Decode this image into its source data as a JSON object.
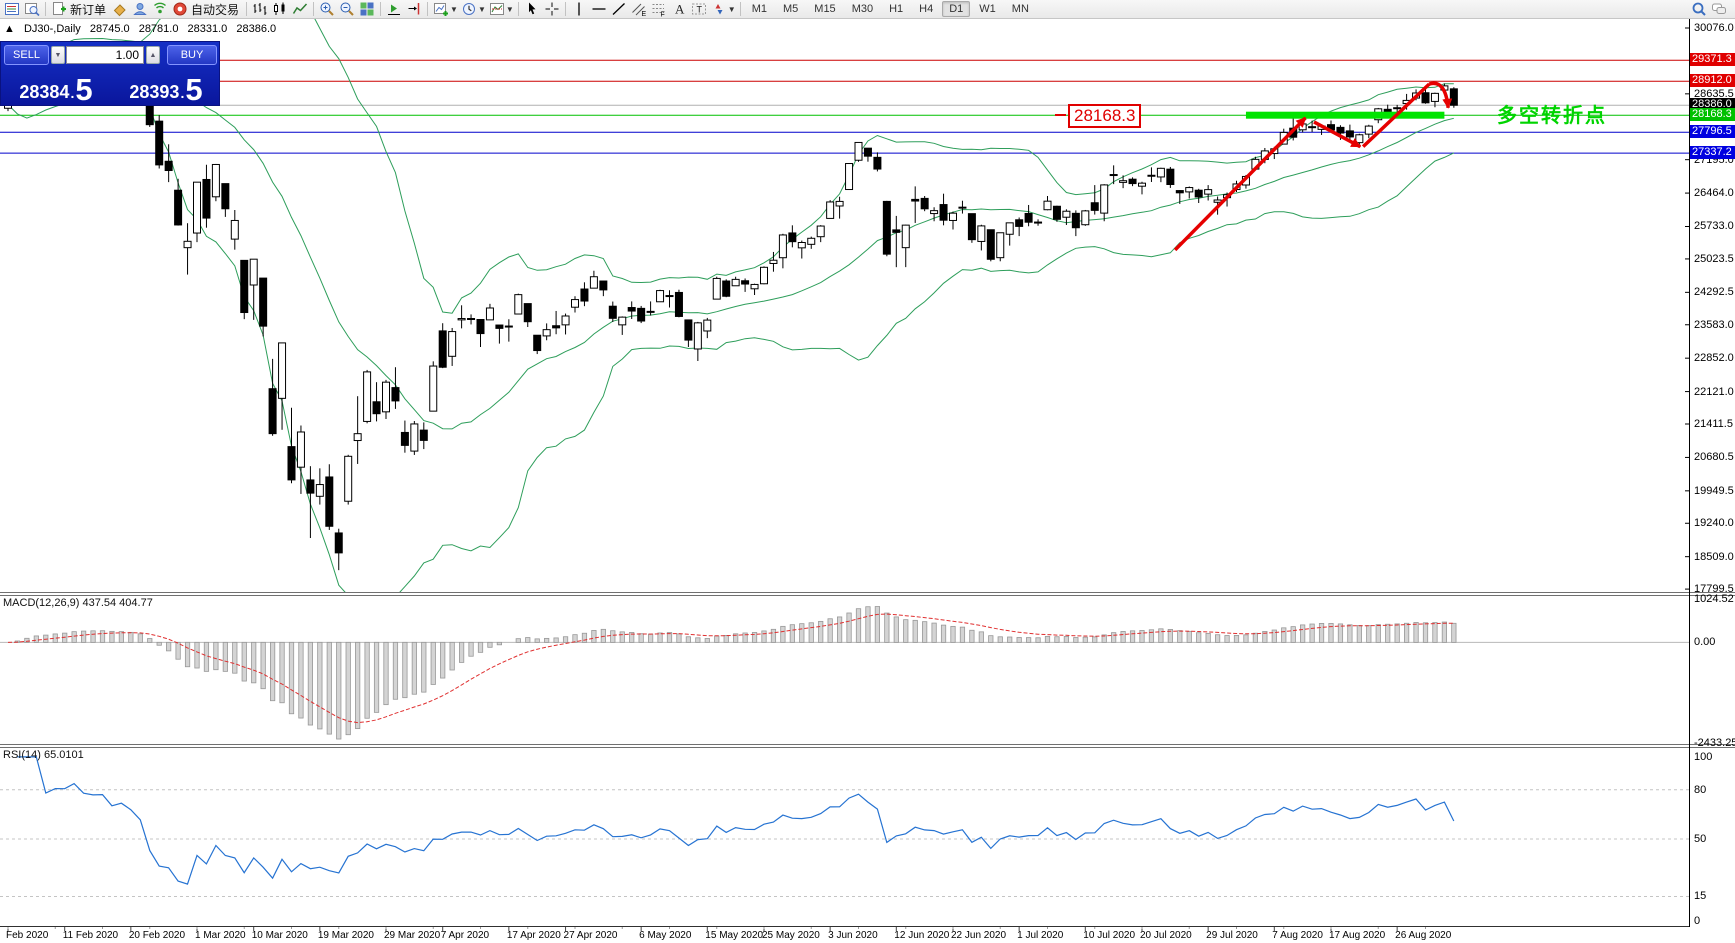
{
  "toolbar": {
    "groups": [
      [
        "market-watch",
        "data-window"
      ],
      [
        "new-order",
        "styler",
        "community",
        "signals",
        "auto-trading"
      ],
      [
        "bar-chart",
        "candlesticks",
        "line-chart"
      ],
      [
        "zoom-in",
        "zoom-out",
        "tile-windows"
      ],
      [
        "auto-scroll",
        "chart-shift"
      ],
      [
        "new-chart",
        "profiles",
        "templates"
      ],
      [
        "cursor",
        "crosshair"
      ],
      [
        "vertical-line",
        "horizontal-line",
        "trendline",
        "equidistant-channel",
        "fibonacci",
        "text",
        "text-label",
        "arrows"
      ]
    ],
    "labels": {
      "new-order": "新订单",
      "auto-trading": "自动交易"
    },
    "dropdown_after": [
      "new-chart",
      "profiles",
      "templates",
      "arrows"
    ],
    "timeframes": [
      "M1",
      "M5",
      "M15",
      "M30",
      "H1",
      "H4",
      "D1",
      "W1",
      "MN"
    ],
    "active_timeframe": "D1",
    "right_icons": [
      "search",
      "chat"
    ]
  },
  "chart_header": {
    "collapse_icon": "▲",
    "symbol_period": "DJ30-,Daily",
    "open": "28745.0",
    "high": "28781.0",
    "low": "28331.0",
    "close": "28386.0"
  },
  "trade_panel": {
    "sell_label": "SELL",
    "buy_label": "BUY",
    "volume": "1.00",
    "spin_down": "▼",
    "spin_up": "▲",
    "sell_price_main": "28384",
    "sell_price_dot": ".",
    "sell_price_pip": "5",
    "buy_price_main": "28393",
    "buy_price_dot": ".",
    "buy_price_pip": "5"
  },
  "annotations": {
    "level_label": "28168.3",
    "turning_point_label": "多空转折点"
  },
  "indicator_labels": {
    "macd": "MACD(12,26,9) 437.54 404.77",
    "rsi": "RSI(14) 65.0101"
  },
  "price_axis": {
    "ticks": [
      30076.0,
      28635.5,
      27195.0,
      26464.0,
      25733.0,
      25023.5,
      24292.5,
      23583.0,
      22852.0,
      22121.0,
      21411.5,
      20680.5,
      19949.5,
      19240.0,
      18509.0,
      17799.5
    ],
    "badges": [
      {
        "text": "29371.3",
        "value": 29371.3,
        "color": "#e00000"
      },
      {
        "text": "28912.0",
        "value": 28912.0,
        "color": "#e00000"
      },
      {
        "text": "28386.0",
        "value": 28386.0,
        "color": "#000000"
      },
      {
        "text": "28168.3",
        "value": 28168.3,
        "color": "#00c000"
      },
      {
        "text": "27796.5",
        "value": 27796.5,
        "color": "#0000e0"
      },
      {
        "text": "27337.2",
        "value": 27337.2,
        "color": "#0000e0"
      }
    ]
  },
  "macd_axis": [
    {
      "text": "1024.52",
      "value": 1024.52
    },
    {
      "text": "0.00",
      "value": 0
    },
    {
      "text": "-2433.25",
      "value": -2433.25
    }
  ],
  "rsi_axis": [
    {
      "text": "100",
      "value": 100
    },
    {
      "text": "80",
      "value": 80
    },
    {
      "text": "50",
      "value": 50
    },
    {
      "text": "15",
      "value": 15
    },
    {
      "text": "0",
      "value": 0
    }
  ],
  "chart_data": {
    "type": "candlestick",
    "symbol": "DJ30-",
    "period": "Daily",
    "price_ylim": [
      17736,
      30273
    ],
    "macd_ylim": [
      -2408,
      1122
    ],
    "rsi_ylim": [
      -3,
      106
    ],
    "indicators": {
      "bollinger": {
        "period": 20,
        "deviation": 2,
        "color": "#2e9e5b"
      },
      "macd": {
        "fast": 12,
        "slow": 26,
        "signal": 9,
        "current": 437.54,
        "current_signal": 404.77
      },
      "rsi": {
        "period": 14,
        "current": 65.0101,
        "levels": [
          80,
          50,
          15
        ]
      }
    },
    "candles": [
      [
        28320,
        28631,
        28256,
        28400
      ],
      [
        28697,
        28905,
        28560,
        28808
      ],
      [
        29049,
        29309,
        28950,
        29291
      ],
      [
        29389,
        29409,
        29247,
        29380
      ],
      [
        29287,
        29409,
        29056,
        29103
      ],
      [
        29075,
        29278,
        28995,
        29277
      ],
      [
        29384,
        29415,
        29211,
        29276
      ],
      [
        29406,
        29568,
        29406,
        29551
      ],
      [
        29407,
        29535,
        29348,
        29423
      ],
      [
        29440,
        29481,
        29331,
        29398
      ],
      [
        29410,
        29460,
        29350,
        29415
      ],
      [
        29282,
        29330,
        29117,
        29232
      ],
      [
        29312,
        29409,
        29250,
        29348
      ],
      [
        29259,
        29368,
        28959,
        29220
      ],
      [
        29096,
        29139,
        28892,
        28992
      ],
      [
        28403,
        28403,
        27912,
        27961
      ],
      [
        28038,
        28170,
        27002,
        27081
      ],
      [
        27160,
        27532,
        26704,
        26958
      ],
      [
        26527,
        26777,
        25753,
        25767
      ],
      [
        25270,
        25805,
        24681,
        25409
      ],
      [
        25590,
        26706,
        25391,
        26703
      ],
      [
        26762,
        27084,
        25707,
        25917
      ],
      [
        26383,
        27102,
        26286,
        27090
      ],
      [
        26671,
        26671,
        25943,
        26121
      ],
      [
        25457,
        26094,
        25226,
        25865
      ],
      [
        24992,
        24992,
        23706,
        23851
      ],
      [
        24453,
        25020,
        23690,
        25018
      ],
      [
        24604,
        24604,
        23328,
        23553
      ],
      [
        22184,
        22837,
        21154,
        21201
      ],
      [
        21973,
        23189,
        21285,
        23186
      ],
      [
        20917,
        21768,
        20116,
        20189
      ],
      [
        20467,
        21379,
        19882,
        21237
      ],
      [
        20188,
        20489,
        18917,
        19899
      ],
      [
        19830,
        20442,
        19649,
        20087
      ],
      [
        20253,
        20531,
        19094,
        19174
      ],
      [
        19028,
        19121,
        18214,
        18592
      ],
      [
        19722,
        20738,
        19649,
        20705
      ],
      [
        21050,
        22020,
        20538,
        21200
      ],
      [
        21468,
        22595,
        21427,
        22552
      ],
      [
        21898,
        22327,
        21469,
        21637
      ],
      [
        21678,
        22378,
        21522,
        22327
      ],
      [
        22208,
        22654,
        21742,
        21917
      ],
      [
        21227,
        21487,
        20784,
        20944
      ],
      [
        20819,
        21477,
        20735,
        21413
      ],
      [
        21278,
        21447,
        20863,
        21053
      ],
      [
        21693,
        22783,
        21693,
        22680
      ],
      [
        23449,
        23617,
        22634,
        22654
      ],
      [
        22893,
        23513,
        22682,
        23434
      ],
      [
        23690,
        24009,
        23504,
        23719
      ],
      [
        23720,
        23810,
        23590,
        23720
      ],
      [
        23698,
        23698,
        23096,
        23390
      ],
      [
        23690,
        24041,
        23690,
        23950
      ],
      [
        23577,
        23577,
        23171,
        23504
      ],
      [
        23555,
        23704,
        23214,
        23538
      ],
      [
        23818,
        24264,
        23818,
        24242
      ],
      [
        24046,
        24046,
        23534,
        23650
      ],
      [
        23354,
        23354,
        22942,
        23019
      ],
      [
        23339,
        23613,
        23244,
        23476
      ],
      [
        23562,
        23885,
        23376,
        23515
      ],
      [
        23581,
        23828,
        23371,
        23775
      ],
      [
        23967,
        24206,
        23851,
        24134
      ],
      [
        24365,
        24512,
        23990,
        24102
      ],
      [
        24384,
        24765,
        24384,
        24634
      ],
      [
        24540,
        24541,
        24209,
        24346
      ],
      [
        23989,
        24091,
        23645,
        23724
      ],
      [
        23581,
        23766,
        23361,
        23750
      ],
      [
        23960,
        24094,
        23710,
        23883
      ],
      [
        23942,
        23995,
        23620,
        23665
      ],
      [
        23854,
        24094,
        23786,
        23876
      ],
      [
        24086,
        24349,
        24086,
        24331
      ],
      [
        24222,
        24338,
        23960,
        24222
      ],
      [
        24290,
        24350,
        23746,
        23765
      ],
      [
        23689,
        23690,
        23097,
        23248
      ],
      [
        23053,
        23646,
        22790,
        23625
      ],
      [
        23447,
        23733,
        23290,
        23685
      ],
      [
        24144,
        24635,
        24144,
        24597
      ],
      [
        24540,
        24577,
        24186,
        24207
      ],
      [
        24436,
        24634,
        24436,
        24576
      ],
      [
        24546,
        24596,
        24302,
        24474
      ],
      [
        24370,
        24482,
        24234,
        24465
      ],
      [
        24480,
        24860,
        24470,
        24840
      ],
      [
        24924,
        25176,
        24744,
        24995
      ],
      [
        25050,
        25574,
        24818,
        25548
      ],
      [
        25592,
        25759,
        25277,
        25401
      ],
      [
        25266,
        25425,
        25032,
        25383
      ],
      [
        25343,
        25511,
        25244,
        25475
      ],
      [
        25510,
        25763,
        25391,
        25743
      ],
      [
        25910,
        26310,
        25910,
        26270
      ],
      [
        26182,
        26384,
        25906,
        26282
      ],
      [
        26542,
        27110,
        26542,
        27111
      ],
      [
        27183,
        27581,
        27151,
        27572
      ],
      [
        27447,
        27447,
        27151,
        27272
      ],
      [
        27246,
        27355,
        26938,
        26990
      ],
      [
        26282,
        26294,
        25082,
        25128
      ],
      [
        25659,
        25965,
        24843,
        25605
      ],
      [
        25270,
        25772,
        24844,
        25763
      ],
      [
        26326,
        26611,
        25811,
        26290
      ],
      [
        26348,
        26400,
        26068,
        26120
      ],
      [
        26016,
        26154,
        25848,
        26080
      ],
      [
        26213,
        26451,
        25759,
        25871
      ],
      [
        25865,
        26059,
        25667,
        26025
      ],
      [
        26147,
        26297,
        26016,
        26156
      ],
      [
        26014,
        26014,
        25376,
        25445
      ],
      [
        25406,
        25772,
        25209,
        25746
      ],
      [
        25662,
        25662,
        24971,
        25016
      ],
      [
        25051,
        25602,
        24972,
        25596
      ],
      [
        25563,
        25813,
        25315,
        25813
      ],
      [
        25880,
        25930,
        25523,
        25735
      ],
      [
        26018,
        26204,
        25738,
        25827
      ],
      [
        25830,
        25890,
        25750,
        25830
      ],
      [
        26100,
        26400,
        26088,
        26287
      ],
      [
        26176,
        26188,
        25835,
        25890
      ],
      [
        25936,
        26109,
        25766,
        26067
      ],
      [
        26021,
        26086,
        25523,
        25706
      ],
      [
        25772,
        26095,
        25747,
        26075
      ],
      [
        26253,
        26639,
        25994,
        26086
      ],
      [
        26026,
        26659,
        25848,
        26643
      ],
      [
        26866,
        27071,
        26660,
        26870
      ],
      [
        26698,
        26852,
        26572,
        26735
      ],
      [
        26768,
        26808,
        26616,
        26672
      ],
      [
        26615,
        26711,
        26436,
        26681
      ],
      [
        26854,
        27027,
        26707,
        26840
      ],
      [
        26817,
        27019,
        26703,
        27006
      ],
      [
        26987,
        27036,
        26577,
        26652
      ],
      [
        26519,
        26529,
        26227,
        26470
      ],
      [
        26490,
        26608,
        26346,
        26585
      ],
      [
        26527,
        26558,
        26247,
        26379
      ],
      [
        26441,
        26639,
        26302,
        26540
      ],
      [
        26263,
        26389,
        25992,
        26313
      ],
      [
        26364,
        26476,
        26170,
        26428
      ],
      [
        26542,
        26734,
        26488,
        26664
      ],
      [
        26641,
        26861,
        26562,
        26828
      ],
      [
        26989,
        27259,
        26989,
        27202
      ],
      [
        27201,
        27451,
        27117,
        27387
      ],
      [
        27329,
        27477,
        27209,
        27433
      ],
      [
        27536,
        27873,
        27528,
        27791
      ],
      [
        27884,
        28155,
        27616,
        27687
      ],
      [
        27849,
        28017,
        27792,
        27977
      ],
      [
        27917,
        28050,
        27801,
        27897
      ],
      [
        27858,
        27959,
        27736,
        27931
      ],
      [
        27961,
        28052,
        27815,
        27845
      ],
      [
        27902,
        27949,
        27627,
        27778
      ],
      [
        27825,
        27962,
        27590,
        27693
      ],
      [
        27568,
        27763,
        27508,
        27740
      ],
      [
        27754,
        27959,
        27664,
        27930
      ],
      [
        28069,
        28327,
        27993,
        28308
      ],
      [
        28297,
        28399,
        28116,
        28248
      ],
      [
        28317,
        28394,
        28210,
        28332
      ],
      [
        28423,
        28634,
        28289,
        28492
      ],
      [
        28543,
        28733,
        28494,
        28654
      ],
      [
        28660,
        28745,
        28420,
        28439
      ],
      [
        28470,
        28662,
        28342,
        28646
      ],
      [
        28718,
        28860,
        28640,
        28810
      ],
      [
        28745,
        28781,
        28331,
        28386
      ]
    ],
    "x_labels": [
      {
        "t": "Feb 2020",
        "i": 0
      },
      {
        "t": "11 Feb 2020",
        "i": 6
      },
      {
        "t": "20 Feb 2020",
        "i": 13
      },
      {
        "t": "1 Mar 2020",
        "i": 20
      },
      {
        "t": "10 Mar 2020",
        "i": 26
      },
      {
        "t": "19 Mar 2020",
        "i": 33
      },
      {
        "t": "29 Mar 2020",
        "i": 40
      },
      {
        "t": "7 Apr 2020",
        "i": 46
      },
      {
        "t": "17 Apr 2020",
        "i": 53
      },
      {
        "t": "27 Apr 2020",
        "i": 59
      },
      {
        "t": "6 May 2020",
        "i": 67
      },
      {
        "t": "15 May 2020",
        "i": 74
      },
      {
        "t": "25 May 2020",
        "i": 80
      },
      {
        "t": "3 Jun 2020",
        "i": 87
      },
      {
        "t": "12 Jun 2020",
        "i": 94
      },
      {
        "t": "22 Jun 2020",
        "i": 100
      },
      {
        "t": "1 Jul 2020",
        "i": 107
      },
      {
        "t": "10 Jul 2020",
        "i": 114
      },
      {
        "t": "20 Jul 2020",
        "i": 120
      },
      {
        "t": "29 Jul 2020",
        "i": 127
      },
      {
        "t": "7 Aug 2020",
        "i": 134
      },
      {
        "t": "17 Aug 2020",
        "i": 140
      },
      {
        "t": "26 Aug 2020",
        "i": 147
      }
    ],
    "hlines": [
      {
        "price": 29371.3,
        "color": "#cc0000",
        "width": 1
      },
      {
        "price": 28912.0,
        "color": "#cc0000",
        "width": 1
      },
      {
        "price": 28386.0,
        "color": "#b0b0b0",
        "width": 1
      },
      {
        "price": 28168.3,
        "color": "#00c000",
        "width": 1
      },
      {
        "price": 27796.5,
        "color": "#0000cc",
        "width": 1
      },
      {
        "price": 27337.2,
        "color": "#0000cc",
        "width": 1
      }
    ],
    "support_band": {
      "i1": 131,
      "i2": 152,
      "price": 28168.3,
      "thickness": 7,
      "color": "#00e400"
    },
    "zigzag": [
      {
        "from": [
          123.5,
          25220
        ],
        "to": [
          137.3,
          28110
        ],
        "arrow": true
      },
      {
        "from": [
          138.2,
          28020
        ],
        "to": [
          143.1,
          27480
        ],
        "arrow": true
      },
      {
        "from": [
          143.4,
          27480
        ],
        "to": [
          150.4,
          28850
        ],
        "arrow": false
      },
      {
        "from": [
          150.4,
          28850
        ],
        "to": [
          152.4,
          28330
        ],
        "arrow": true,
        "curve": true
      }
    ]
  }
}
